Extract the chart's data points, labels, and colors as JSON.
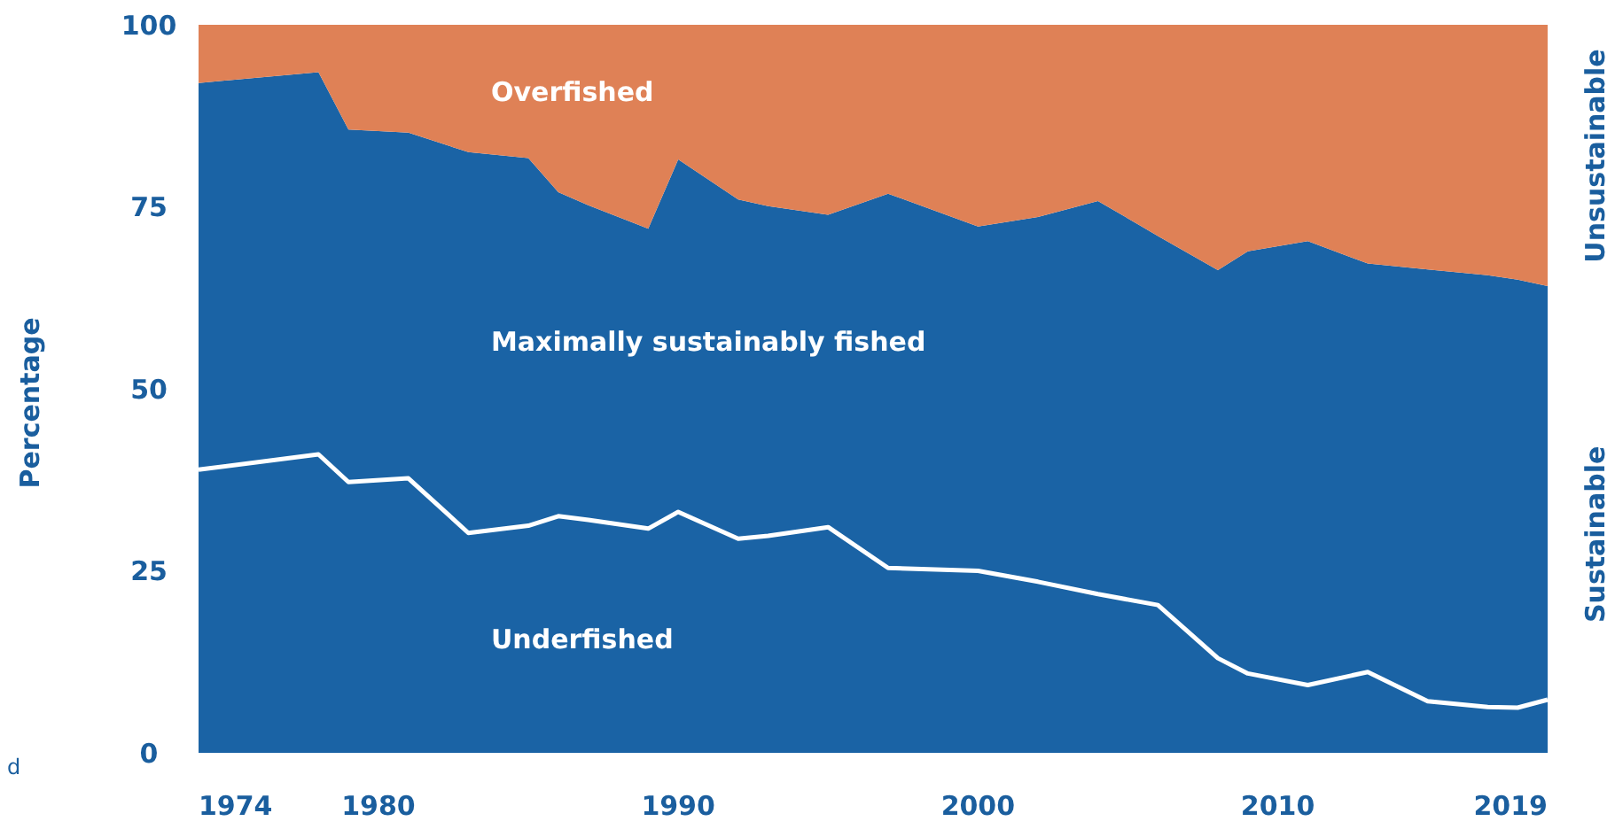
{
  "chart_data": {
    "type": "area",
    "stacked": true,
    "ylabel": "Percentage",
    "x": [
      1974,
      1978,
      1979,
      1981,
      1983,
      1985,
      1986,
      1987,
      1989,
      1990,
      1992,
      1993,
      1995,
      1997,
      2000,
      2002,
      2004,
      2006,
      2008,
      2009,
      2011,
      2013,
      2015,
      2017,
      2018,
      2019
    ],
    "xlim": [
      1974,
      2019
    ],
    "xticks": [
      1974,
      1980,
      1990,
      2000,
      2010,
      2019
    ],
    "ylim": [
      0,
      100
    ],
    "yticks": [
      0,
      25,
      50,
      75,
      100
    ],
    "grid": false,
    "series": [
      {
        "name": "Underfished",
        "color": "#1a63a5",
        "values": [
          38.9,
          41.0,
          37.2,
          37.7,
          30.2,
          31.2,
          32.5,
          32.0,
          30.8,
          33.1,
          29.4,
          29.8,
          31.0,
          25.4,
          25.0,
          23.5,
          21.8,
          20.3,
          13.0,
          10.9,
          9.3,
          11.1,
          7.1,
          6.3,
          6.2,
          7.3
        ]
      },
      {
        "name": "Maximally sustainably fished",
        "color": "#1a63a5",
        "values": [
          53.1,
          52.5,
          48.4,
          47.5,
          52.3,
          50.5,
          44.5,
          43.2,
          41.2,
          48.4,
          46.6,
          45.3,
          42.9,
          51.4,
          47.3,
          50.1,
          54.0,
          50.7,
          53.3,
          58.0,
          61.0,
          56.1,
          59.3,
          59.3,
          58.8,
          56.8
        ]
      },
      {
        "name": "Overfished",
        "color": "#df8156",
        "values": [
          8.0,
          6.5,
          14.4,
          14.8,
          17.5,
          18.3,
          23.0,
          24.8,
          28.0,
          18.5,
          24.0,
          24.9,
          26.1,
          23.2,
          27.7,
          26.4,
          24.2,
          29.0,
          33.7,
          31.1,
          29.7,
          32.8,
          33.6,
          34.4,
          35.0,
          35.9
        ]
      }
    ],
    "annotations": [
      "Unsustainable",
      "Sustainable",
      "d"
    ]
  }
}
